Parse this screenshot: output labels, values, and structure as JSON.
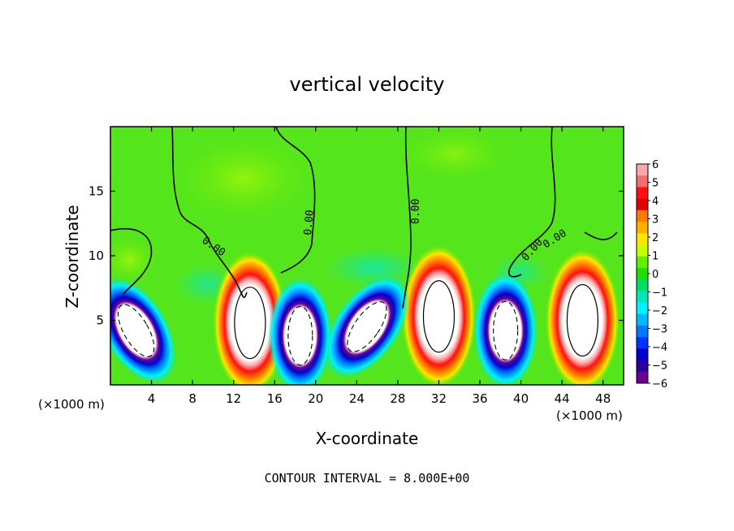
{
  "chart_data": {
    "type": "heatmap",
    "title": "vertical velocity",
    "xlabel": "X-coordinate",
    "ylabel": "Z-coordinate",
    "x_unit": "(×1000 m)",
    "x_unit_right": "(×1000 m)",
    "xlim": [
      0,
      50
    ],
    "ylim": [
      0,
      20
    ],
    "x_ticks": [
      4,
      8,
      12,
      16,
      20,
      24,
      28,
      32,
      36,
      40,
      44,
      48
    ],
    "y_ticks": [
      5,
      10,
      15
    ],
    "colorbar": {
      "labels": [
        "6",
        "5",
        "4",
        "3",
        "2",
        "1",
        "0",
        "-1",
        "-2",
        "-3",
        "-4",
        "-5",
        "-6"
      ],
      "range": [
        -6,
        6
      ],
      "colors": [
        "#f8a8a8",
        "#f07070",
        "#ff1010",
        "#e00000",
        "#ff7a00",
        "#ffb000",
        "#ffe600",
        "#c8ff00",
        "#66ee00",
        "#22dd00",
        "#00dd66",
        "#00e8b8",
        "#00f0ff",
        "#00b8ff",
        "#0078ff",
        "#0033ff",
        "#0000cc",
        "#2a00a0",
        "#6a0090"
      ]
    },
    "contour_labels": [
      "0.00",
      "0.00",
      "0.00",
      "0.00",
      "0.00"
    ],
    "contour_interval_text": "CONTOUR INTERVAL = 8.000E+00",
    "updrafts": [
      {
        "x": 13.6,
        "z": 4.8
      },
      {
        "x": 32.0,
        "z": 5.3
      },
      {
        "x": 46.0,
        "z": 5.0
      }
    ],
    "downdrafts": [
      {
        "x": 2.5,
        "z": 4.2
      },
      {
        "x": 18.5,
        "z": 3.8
      },
      {
        "x": 25.0,
        "z": 4.5
      },
      {
        "x": 38.5,
        "z": 4.2
      }
    ]
  }
}
